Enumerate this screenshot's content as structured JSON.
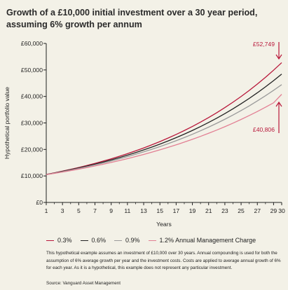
{
  "header": {
    "title": "Growth of a £10,000 initial investment over a 30 year period, assuming 6% growth per annum"
  },
  "chart_data": {
    "type": "line",
    "xlabel": "Years",
    "ylabel": "Hypothetical portfolio value",
    "x": [
      1,
      2,
      3,
      4,
      5,
      6,
      7,
      8,
      9,
      10,
      11,
      12,
      13,
      14,
      15,
      16,
      17,
      18,
      19,
      20,
      21,
      22,
      23,
      24,
      25,
      26,
      27,
      28,
      29,
      30
    ],
    "x_tick_labels": [
      "1",
      "3",
      "5",
      "7",
      "9",
      "11",
      "13",
      "15",
      "17",
      "19",
      "21",
      "23",
      "25",
      "27",
      "29",
      "30"
    ],
    "x_ticks": [
      1,
      3,
      5,
      7,
      9,
      11,
      13,
      15,
      17,
      19,
      21,
      23,
      25,
      27,
      29,
      30
    ],
    "x_minor_ticks": [
      2,
      4,
      6,
      8,
      10,
      12,
      14,
      16,
      18,
      20,
      22,
      24,
      26,
      28
    ],
    "xlim": [
      1,
      30
    ],
    "ylim": [
      0,
      60000
    ],
    "y_ticks": [
      0,
      10000,
      20000,
      30000,
      40000,
      50000,
      60000
    ],
    "y_tick_labels": [
      "£0",
      "£10,000",
      "£20,000",
      "£30,000",
      "£40,000",
      "£50,000",
      "£60,000"
    ],
    "grid": false,
    "series": [
      {
        "name": "0.3%",
        "color": "#b8173a",
        "values": [
          10570,
          11172,
          11809,
          12482,
          13194,
          13946,
          14741,
          15581,
          16469,
          17408,
          18400,
          19449,
          20558,
          21730,
          22968,
          24278,
          25661,
          27124,
          28670,
          30305,
          32032,
          33858,
          35788,
          37828,
          39984,
          42263,
          44672,
          47218,
          49909,
          52749
        ]
      },
      {
        "name": "0.6%",
        "color": "#222222",
        "values": [
          10540,
          11109,
          11709,
          12341,
          13008,
          13710,
          14451,
          15231,
          16054,
          16920,
          17834,
          18797,
          19813,
          20882,
          22010,
          23199,
          24452,
          25772,
          27164,
          28630,
          30177,
          31806,
          33524,
          35334,
          37242,
          39253,
          41373,
          43607,
          45962,
          48444
        ]
      },
      {
        "name": "0.9%",
        "color": "#9a9a9a",
        "values": [
          10509,
          11045,
          11608,
          12200,
          12822,
          13476,
          14163,
          14885,
          15644,
          16442,
          17281,
          18162,
          19088,
          20062,
          21085,
          22160,
          23290,
          24478,
          25726,
          27038,
          28417,
          29866,
          31389,
          32990,
          34672,
          36441,
          38299,
          40252,
          42305,
          44462
        ]
      },
      {
        "name": "1.2% Annual Management Charge",
        "color": "#e27f93",
        "values": [
          10473,
          10962,
          11474,
          12010,
          12571,
          13158,
          13773,
          14416,
          15089,
          15794,
          16531,
          17303,
          18111,
          18957,
          19843,
          20769,
          21739,
          22755,
          23817,
          24930,
          26094,
          27313,
          28588,
          29923,
          31321,
          32783,
          34314,
          35917,
          37594,
          40806
        ]
      }
    ],
    "annotations": [
      {
        "text": "£52,749",
        "color": "#b8173a"
      },
      {
        "text": "£40,806",
        "color": "#b8173a"
      }
    ]
  },
  "note": "This hypothetical example assumes an investment of £10,000 over 30 years. Annual compounding is used for both the assumption of 6% average growth per year and the investment costs. Costs are applied to average annual growth of 6% for each year. As it is a hypothetical, this example does not represent any particular investment.",
  "source": "Source: Vanguard Asset Management"
}
